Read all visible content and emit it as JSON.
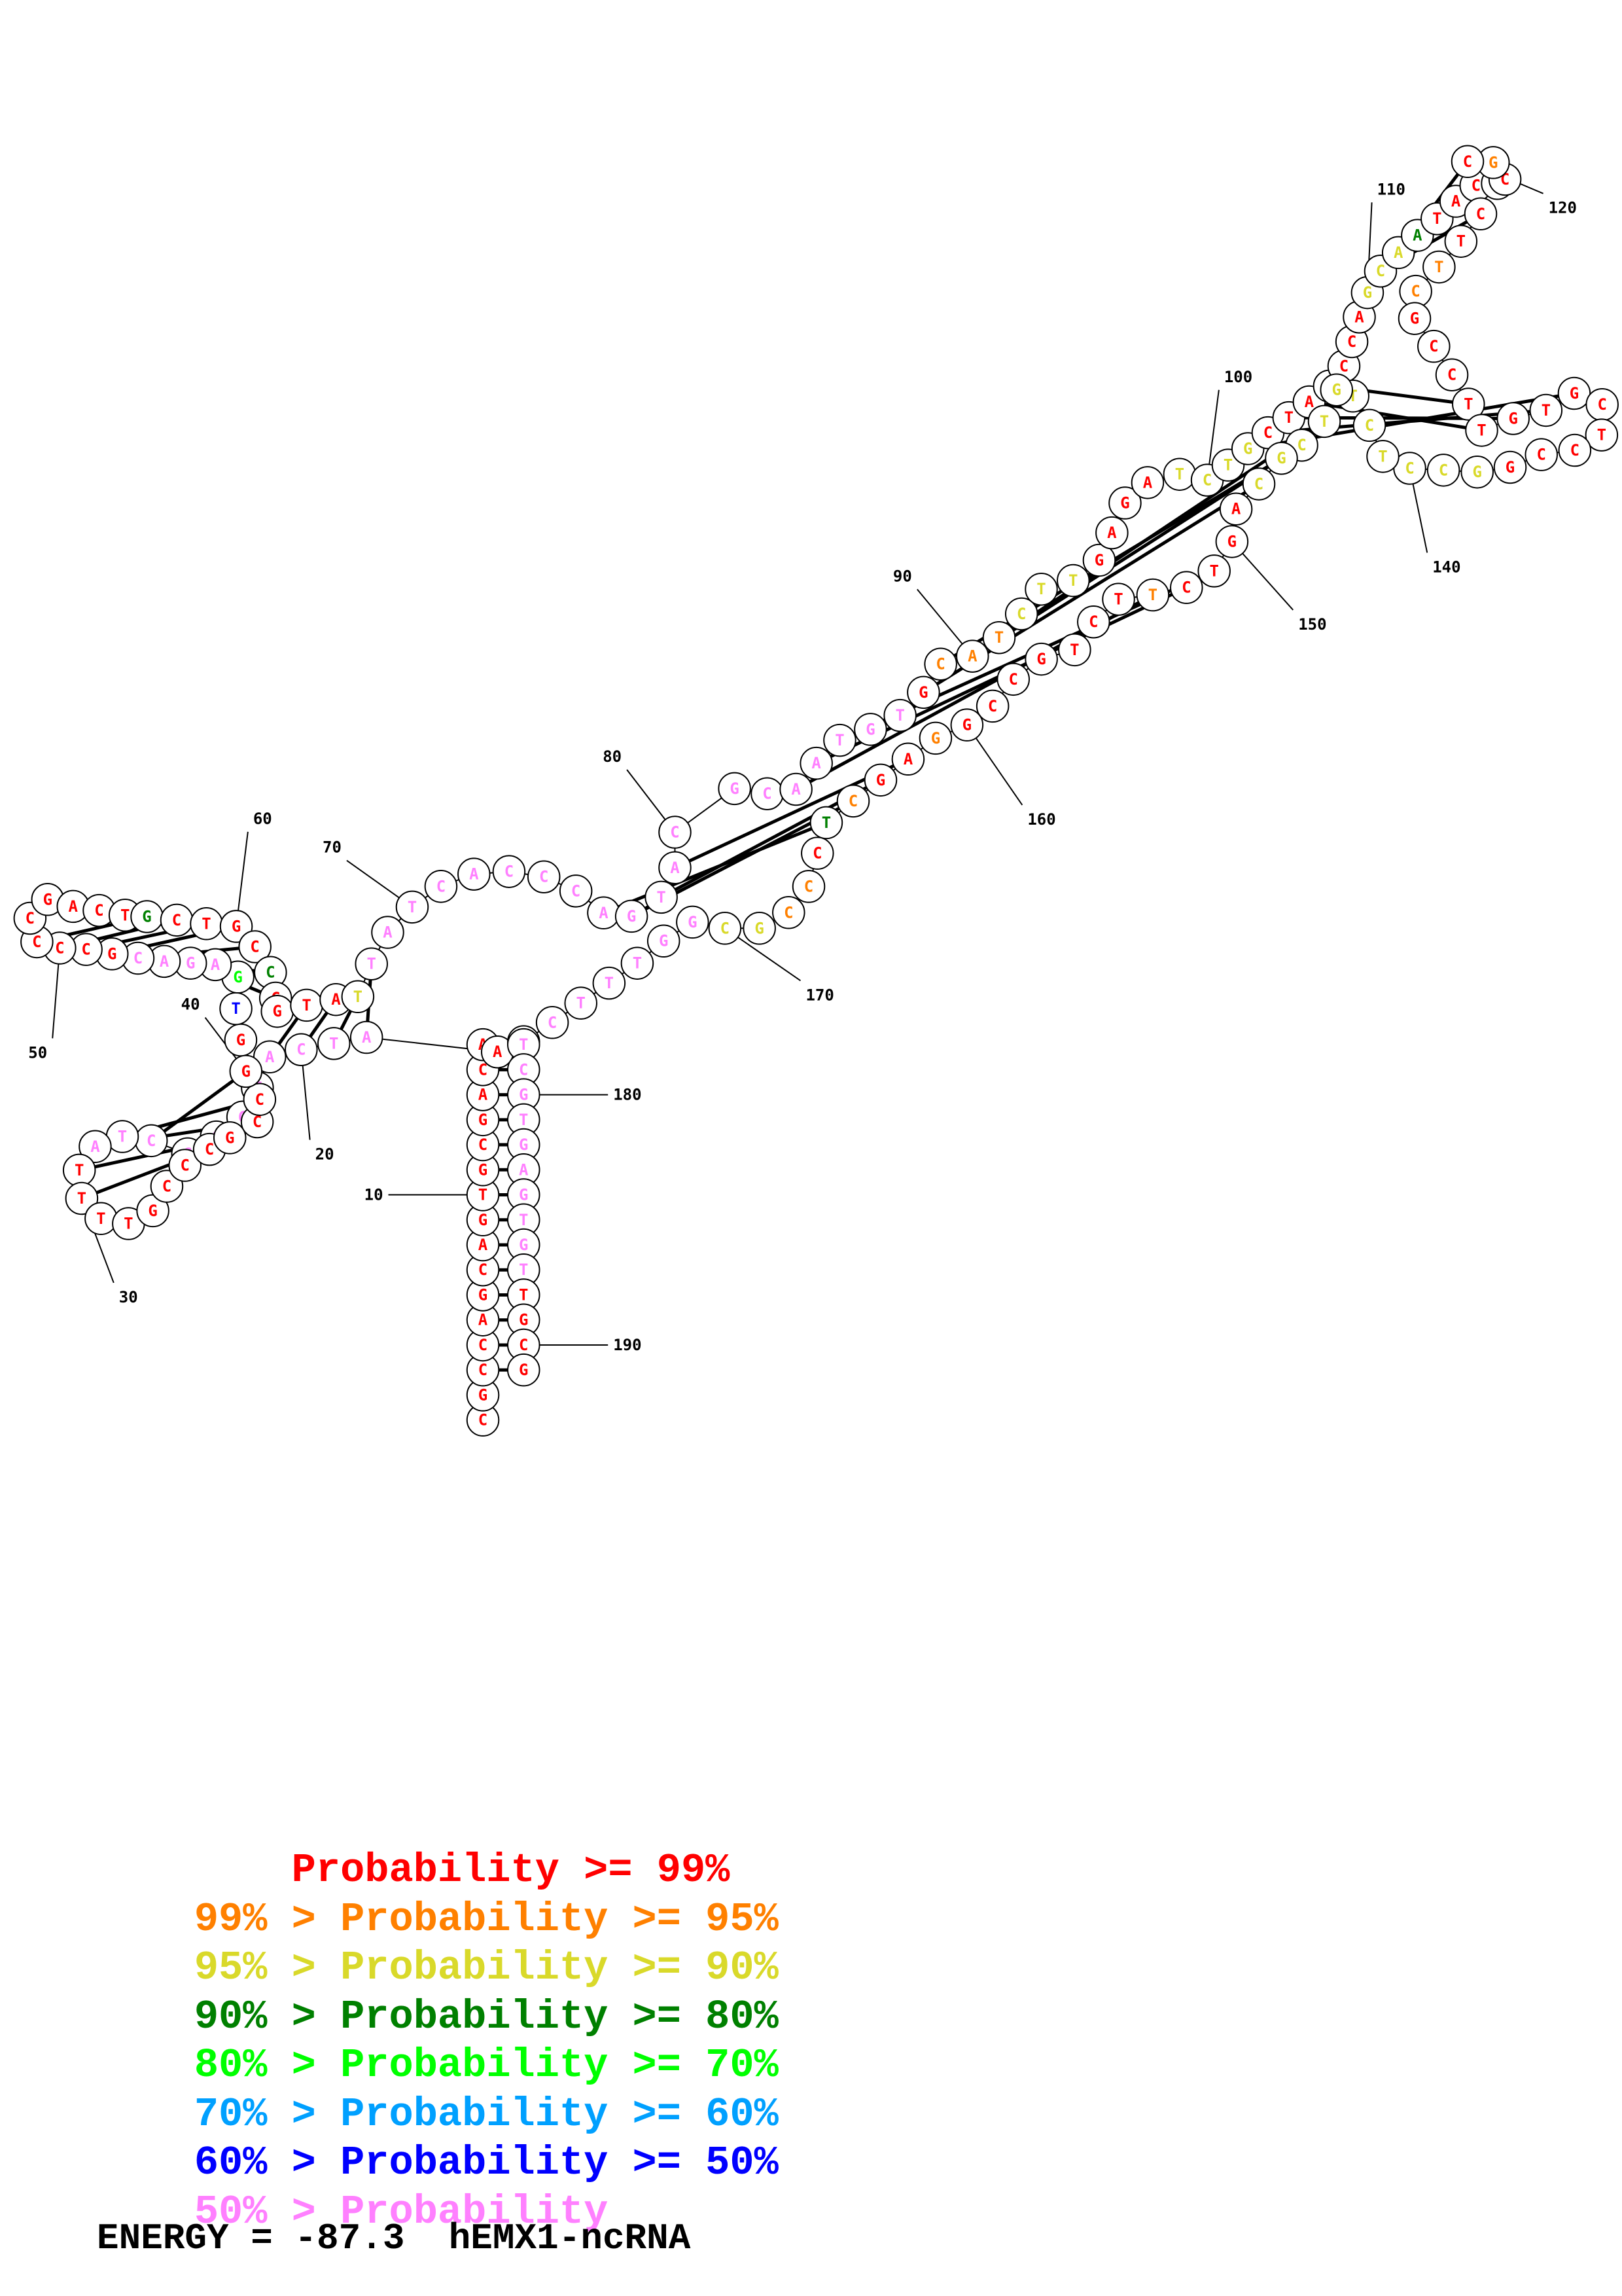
{
  "diagram": {
    "type": "rna-secondary-structure",
    "sequence": "CGCCAGCAGTGCGACAAATCATGCGCTATTTTGCCCGCCGGTGAGACGCCCCGACTGCTGCCCGTATTATCACCCAGTACGCAATGTGCATCTTGAGATCTGCTAACCAGCAATACTCGCCTTCGCCTTGTGCTCCGGCCTCTGTCGCAGTCTTCTGCCGGAGCTCCCGCGGTTTCCTCGTGAGTGTTGCG",
    "position_labels": [
      "10",
      "20",
      "30",
      "40",
      "50",
      "60",
      "70",
      "80",
      "90",
      "100",
      "110",
      "120",
      "140",
      "150",
      "160",
      "170",
      "180",
      "190"
    ],
    "probability_colors": [
      "#ff0000",
      "#ff8000",
      "#d9d92a",
      "#008000",
      "#00ff00",
      "#00a0ff",
      "#0000ff",
      "#ff80ff"
    ]
  },
  "legend": [
    {
      "prefix": "    ",
      "text": "Probability >= 99%",
      "color": "#ff0000"
    },
    {
      "prefix": "99% > ",
      "text": "Probability >= 95%",
      "color": "#ff8000"
    },
    {
      "prefix": "95% > ",
      "text": "Probability >= 90%",
      "color": "#d9d92a"
    },
    {
      "prefix": "90% > ",
      "text": "Probability >= 80%",
      "color": "#008000"
    },
    {
      "prefix": "80% > ",
      "text": "Probability >= 70%",
      "color": "#00ff00"
    },
    {
      "prefix": "70% > ",
      "text": "Probability >= 60%",
      "color": "#00a0ff"
    },
    {
      "prefix": "60% > ",
      "text": "Probability >= 50%",
      "color": "#0000ff"
    },
    {
      "prefix": "50% > ",
      "text": "Probability",
      "color": "#ff80ff"
    }
  ],
  "footer": {
    "energy": "ENERGY = -87.3",
    "name": "hEMX1-ncRNA"
  }
}
